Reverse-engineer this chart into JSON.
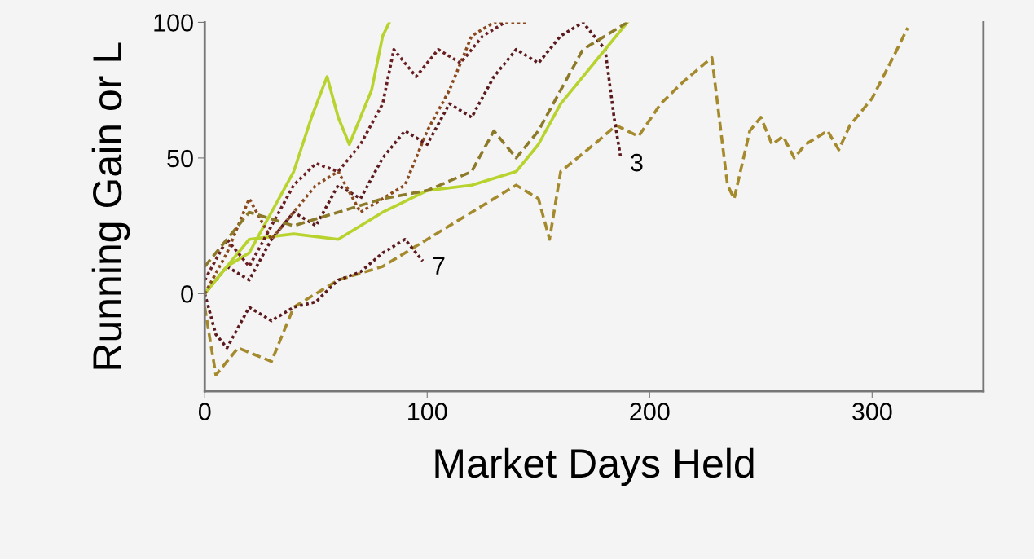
{
  "chart_data": {
    "type": "line",
    "xlabel": "Market Days Held",
    "ylabel": "Running Gain or L",
    "xlim": [
      0,
      350
    ],
    "xticks": [
      0,
      100,
      200,
      300
    ],
    "ylim": [
      -36,
      100
    ],
    "yticks": [
      0,
      50,
      100
    ],
    "grid": false,
    "marker": "none",
    "annotations": [
      {
        "text": "3",
        "x": 187,
        "y": 50
      },
      {
        "text": "7",
        "x": 98,
        "y": 12
      }
    ],
    "series": [
      {
        "color": "#a48a2c",
        "line_style": "dashed",
        "x": [
          0,
          5,
          15,
          30,
          40,
          60,
          80,
          100,
          120,
          140,
          150,
          155,
          160,
          175,
          185,
          195,
          205,
          215,
          225,
          228,
          232,
          235,
          238,
          245,
          250,
          255,
          260,
          265,
          270,
          280,
          285,
          290,
          300,
          310,
          316
        ],
        "values": [
          -5,
          -30,
          -20,
          -25,
          -5,
          5,
          10,
          20,
          30,
          40,
          35,
          20,
          45,
          55,
          62,
          58,
          70,
          78,
          85,
          87,
          60,
          40,
          35,
          60,
          65,
          55,
          58,
          50,
          55,
          60,
          53,
          62,
          72,
          88,
          98
        ]
      },
      {
        "color": "#5a1a1e",
        "line_style": "dotted",
        "x": [
          0,
          10,
          20,
          30,
          40,
          50,
          60,
          70,
          80,
          90,
          100,
          110,
          120,
          130,
          140,
          150,
          160,
          170,
          180,
          184,
          187
        ],
        "values": [
          0,
          10,
          5,
          20,
          30,
          25,
          40,
          35,
          50,
          60,
          55,
          70,
          65,
          80,
          90,
          85,
          95,
          100,
          90,
          65,
          50
        ]
      },
      {
        "color": "#5a1a1e",
        "line_style": "dotted",
        "x": [
          0,
          5,
          10,
          20,
          30,
          40,
          50,
          60,
          70,
          80,
          90,
          98
        ],
        "values": [
          0,
          -15,
          -20,
          -5,
          -10,
          -5,
          -3,
          5,
          8,
          15,
          20,
          12
        ]
      },
      {
        "color": "#b8d32e",
        "line_style": "solid",
        "x": [
          0,
          10,
          20,
          30,
          40,
          48,
          55,
          60,
          65,
          70,
          75,
          80,
          83
        ],
        "values": [
          0,
          10,
          15,
          30,
          45,
          65,
          80,
          65,
          55,
          65,
          75,
          95,
          100
        ]
      },
      {
        "color": "#b8d32e",
        "line_style": "solid",
        "x": [
          0,
          20,
          40,
          60,
          80,
          100,
          120,
          140,
          150,
          160,
          170,
          180,
          190
        ],
        "values": [
          0,
          20,
          22,
          20,
          30,
          38,
          40,
          45,
          55,
          70,
          80,
          90,
          100
        ]
      },
      {
        "color": "#8b4a1e",
        "line_style": "dotted",
        "x": [
          0,
          10,
          20,
          30,
          40,
          50,
          60,
          70,
          80,
          90,
          100,
          110,
          120,
          130,
          145
        ],
        "values": [
          0,
          15,
          35,
          20,
          30,
          40,
          45,
          30,
          35,
          40,
          60,
          75,
          95,
          100,
          100
        ]
      },
      {
        "color": "#6a1f22",
        "line_style": "dotted",
        "x": [
          0,
          10,
          20,
          30,
          40,
          50,
          60,
          70,
          80,
          85,
          95,
          105,
          115,
          125,
          135
        ],
        "values": [
          5,
          20,
          10,
          25,
          40,
          48,
          45,
          55,
          70,
          90,
          80,
          90,
          85,
          95,
          100
        ]
      },
      {
        "color": "#8c7a28",
        "line_style": "dashed",
        "x": [
          0,
          10,
          20,
          40,
          60,
          80,
          100,
          120,
          130,
          140,
          150,
          160,
          170,
          180,
          190
        ],
        "values": [
          10,
          20,
          30,
          25,
          30,
          35,
          38,
          45,
          60,
          50,
          60,
          75,
          90,
          95,
          100
        ]
      }
    ]
  }
}
